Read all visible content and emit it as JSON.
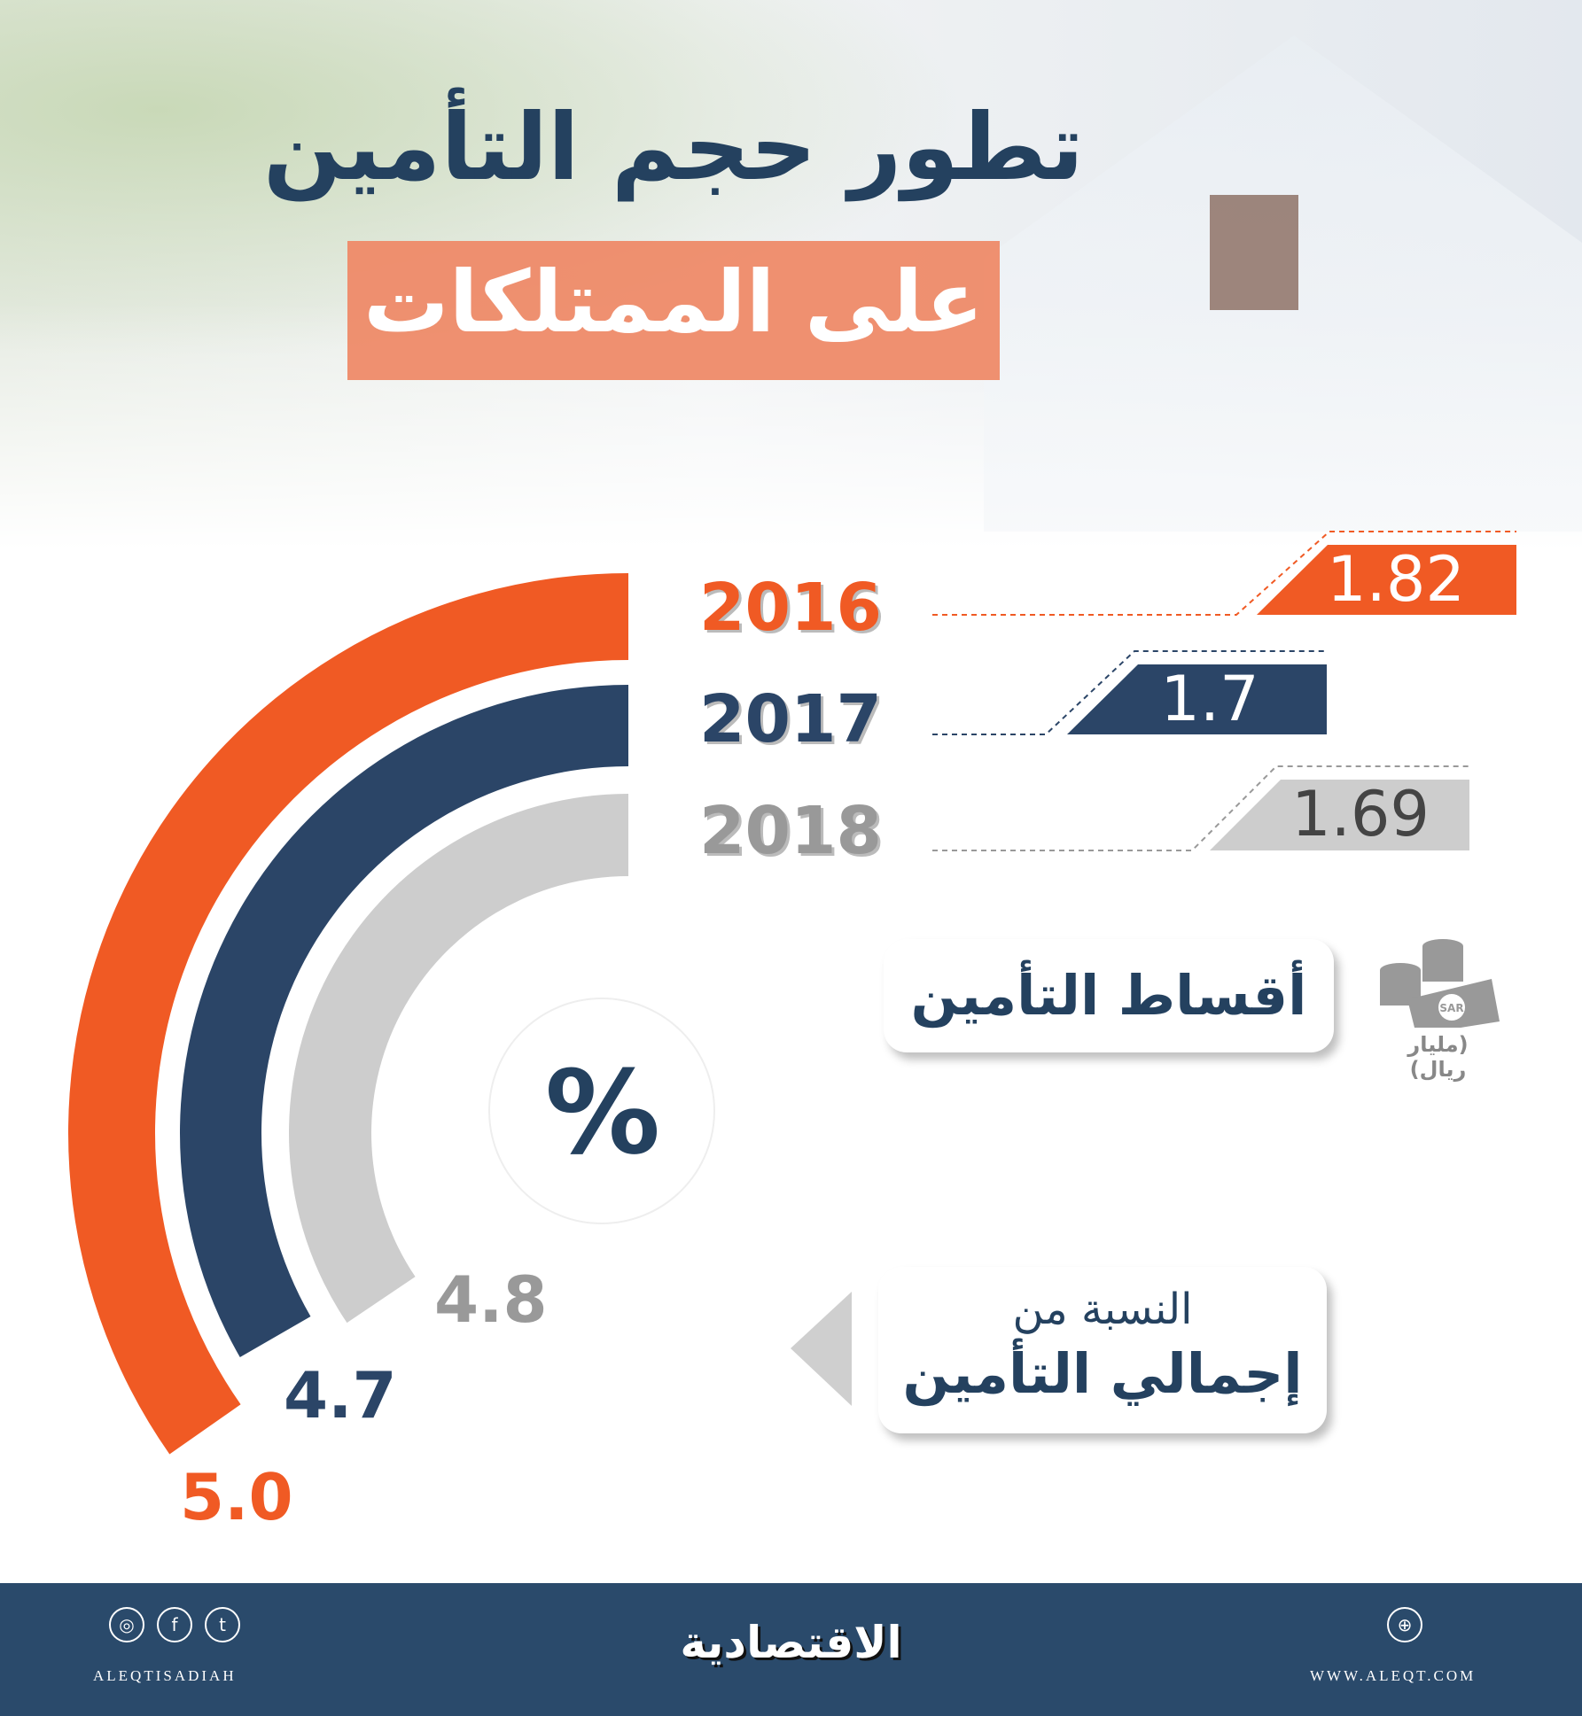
{
  "title": "تطور حجم التأمين",
  "subtitle": "على الممتلكات",
  "colors": {
    "orange": "#f05a24",
    "blue": "#2b4567",
    "gray": "#cdcdcd",
    "footer": "#2a4a6b"
  },
  "years": [
    {
      "year": "2016",
      "premium": "1.82",
      "share": "5.0",
      "color": "#f05a24",
      "text": "#f05a24"
    },
    {
      "year": "2017",
      "premium": "1.7",
      "share": "4.7",
      "color": "#2b4567",
      "text": "#2b4567"
    },
    {
      "year": "2018",
      "premium": "1.69",
      "share": "4.8",
      "color": "#cdcdcd",
      "text": "#999999"
    }
  ],
  "percent_symbol": "%",
  "premiums_label": "أقساط التأمين",
  "unit": "(مليار ريال)",
  "money_icon": "sar-coins-cash-icon",
  "money_icon_text": "SAR",
  "share_label_line1": "النسبة من",
  "share_label_line2": "إجمالي التأمين",
  "footer": {
    "brand": "الاقتصادية",
    "handle": "ALEQTISADIAH",
    "website": "WWW.ALEQT.COM",
    "icons": [
      "instagram-icon",
      "facebook-icon",
      "twitter-icon",
      "globe-icon"
    ]
  }
}
